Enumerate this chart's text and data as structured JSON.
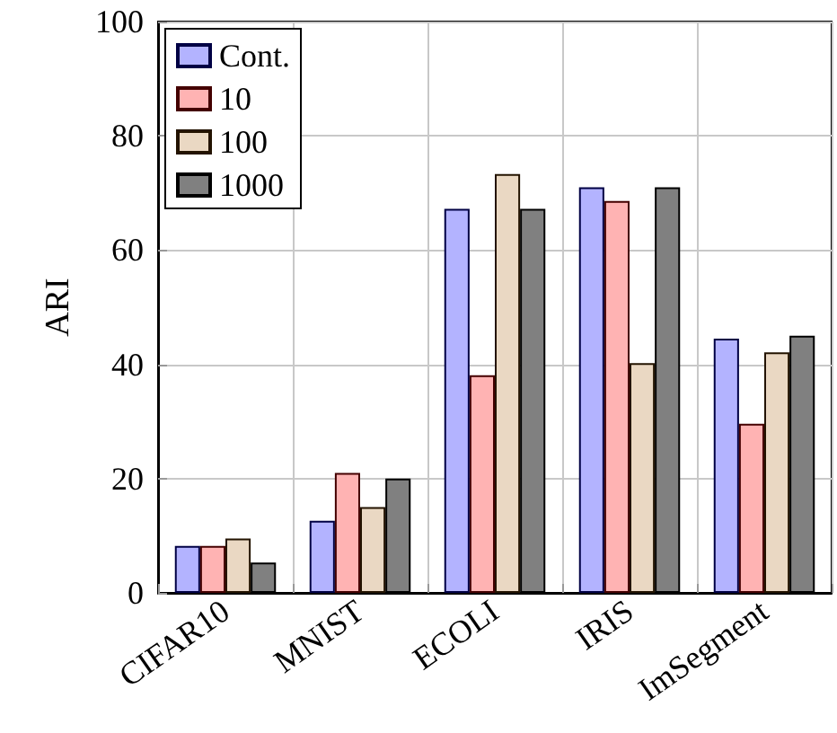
{
  "chart_data": {
    "type": "bar",
    "ylabel": "ARI",
    "categories": [
      "CIFAR10",
      "MNIST",
      "ECOLI",
      "IRIS",
      "ImSegment"
    ],
    "series": [
      {
        "name": "Cont.",
        "color": "#b3b3ff",
        "values": [
          8.2,
          12.6,
          67.2,
          71,
          44.5
        ]
      },
      {
        "name": "10",
        "color": "#ffb3b3",
        "values": [
          8.2,
          21,
          38.1,
          68.6,
          29.6
        ]
      },
      {
        "name": "100",
        "color": "#ead8c3",
        "values": [
          9.5,
          15,
          73.3,
          40.2,
          42.1
        ]
      },
      {
        "name": "1000",
        "color": "#808080",
        "values": [
          5.3,
          20,
          67.2,
          71,
          45
        ]
      }
    ],
    "ylim": [
      0,
      100
    ],
    "yticks": [
      0,
      20,
      40,
      60,
      80,
      100
    ],
    "grid": true,
    "legend": "top left"
  }
}
